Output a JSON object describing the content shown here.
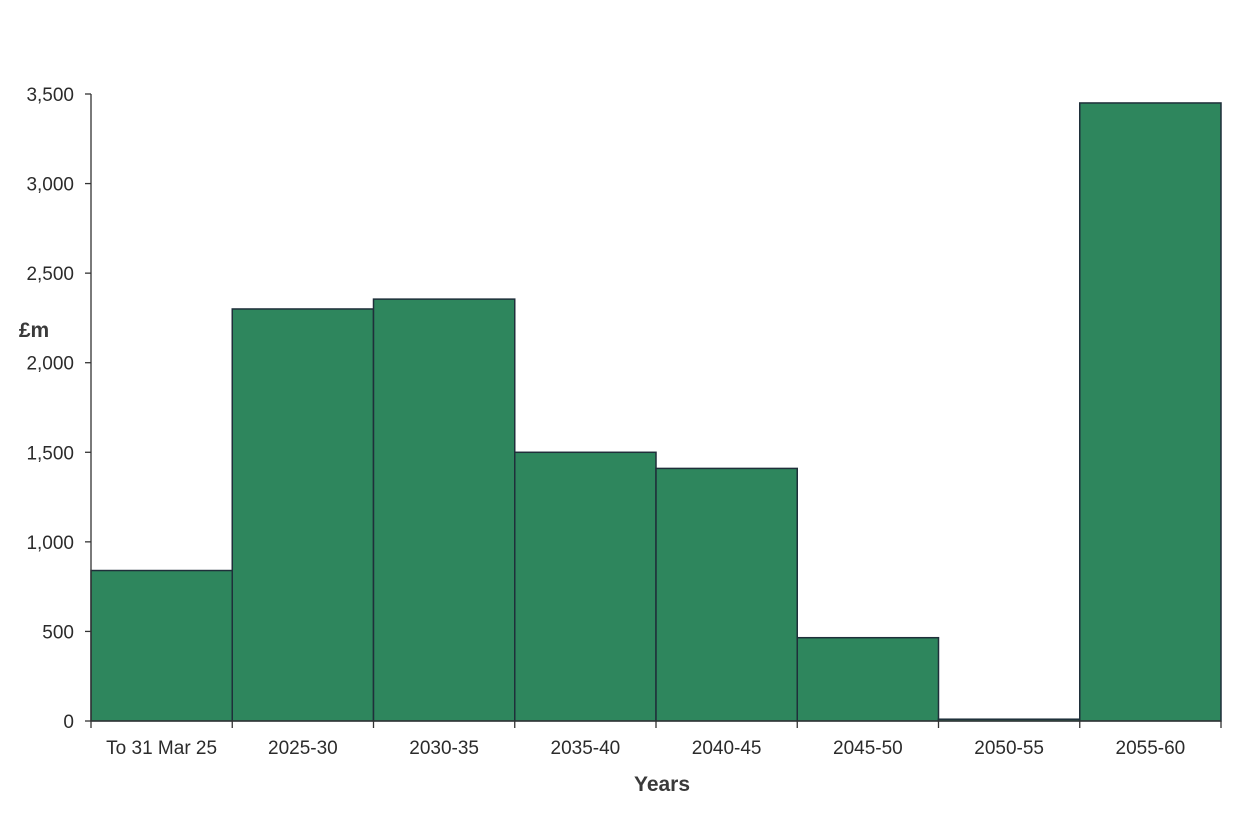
{
  "chart_data": {
    "type": "bar",
    "categories": [
      "To 31 Mar 25",
      "2025-30",
      "2030-35",
      "2035-40",
      "2040-45",
      "2045-50",
      "2050-55",
      "2055-60"
    ],
    "values": [
      840,
      2300,
      2355,
      1500,
      1410,
      465,
      10,
      3450
    ],
    "title": "",
    "xlabel": "Years",
    "ylabel": "£m",
    "ylim": [
      0,
      3500
    ],
    "yticks": [
      0,
      500,
      1000,
      1500,
      2000,
      2500,
      3000,
      3500
    ],
    "ytick_labels": [
      "0",
      "500",
      "1,000",
      "1,500",
      "2,000",
      "2,500",
      "3,000",
      "3,500"
    ],
    "bar_color": "#2e865d",
    "grid": false,
    "legend": "none"
  }
}
